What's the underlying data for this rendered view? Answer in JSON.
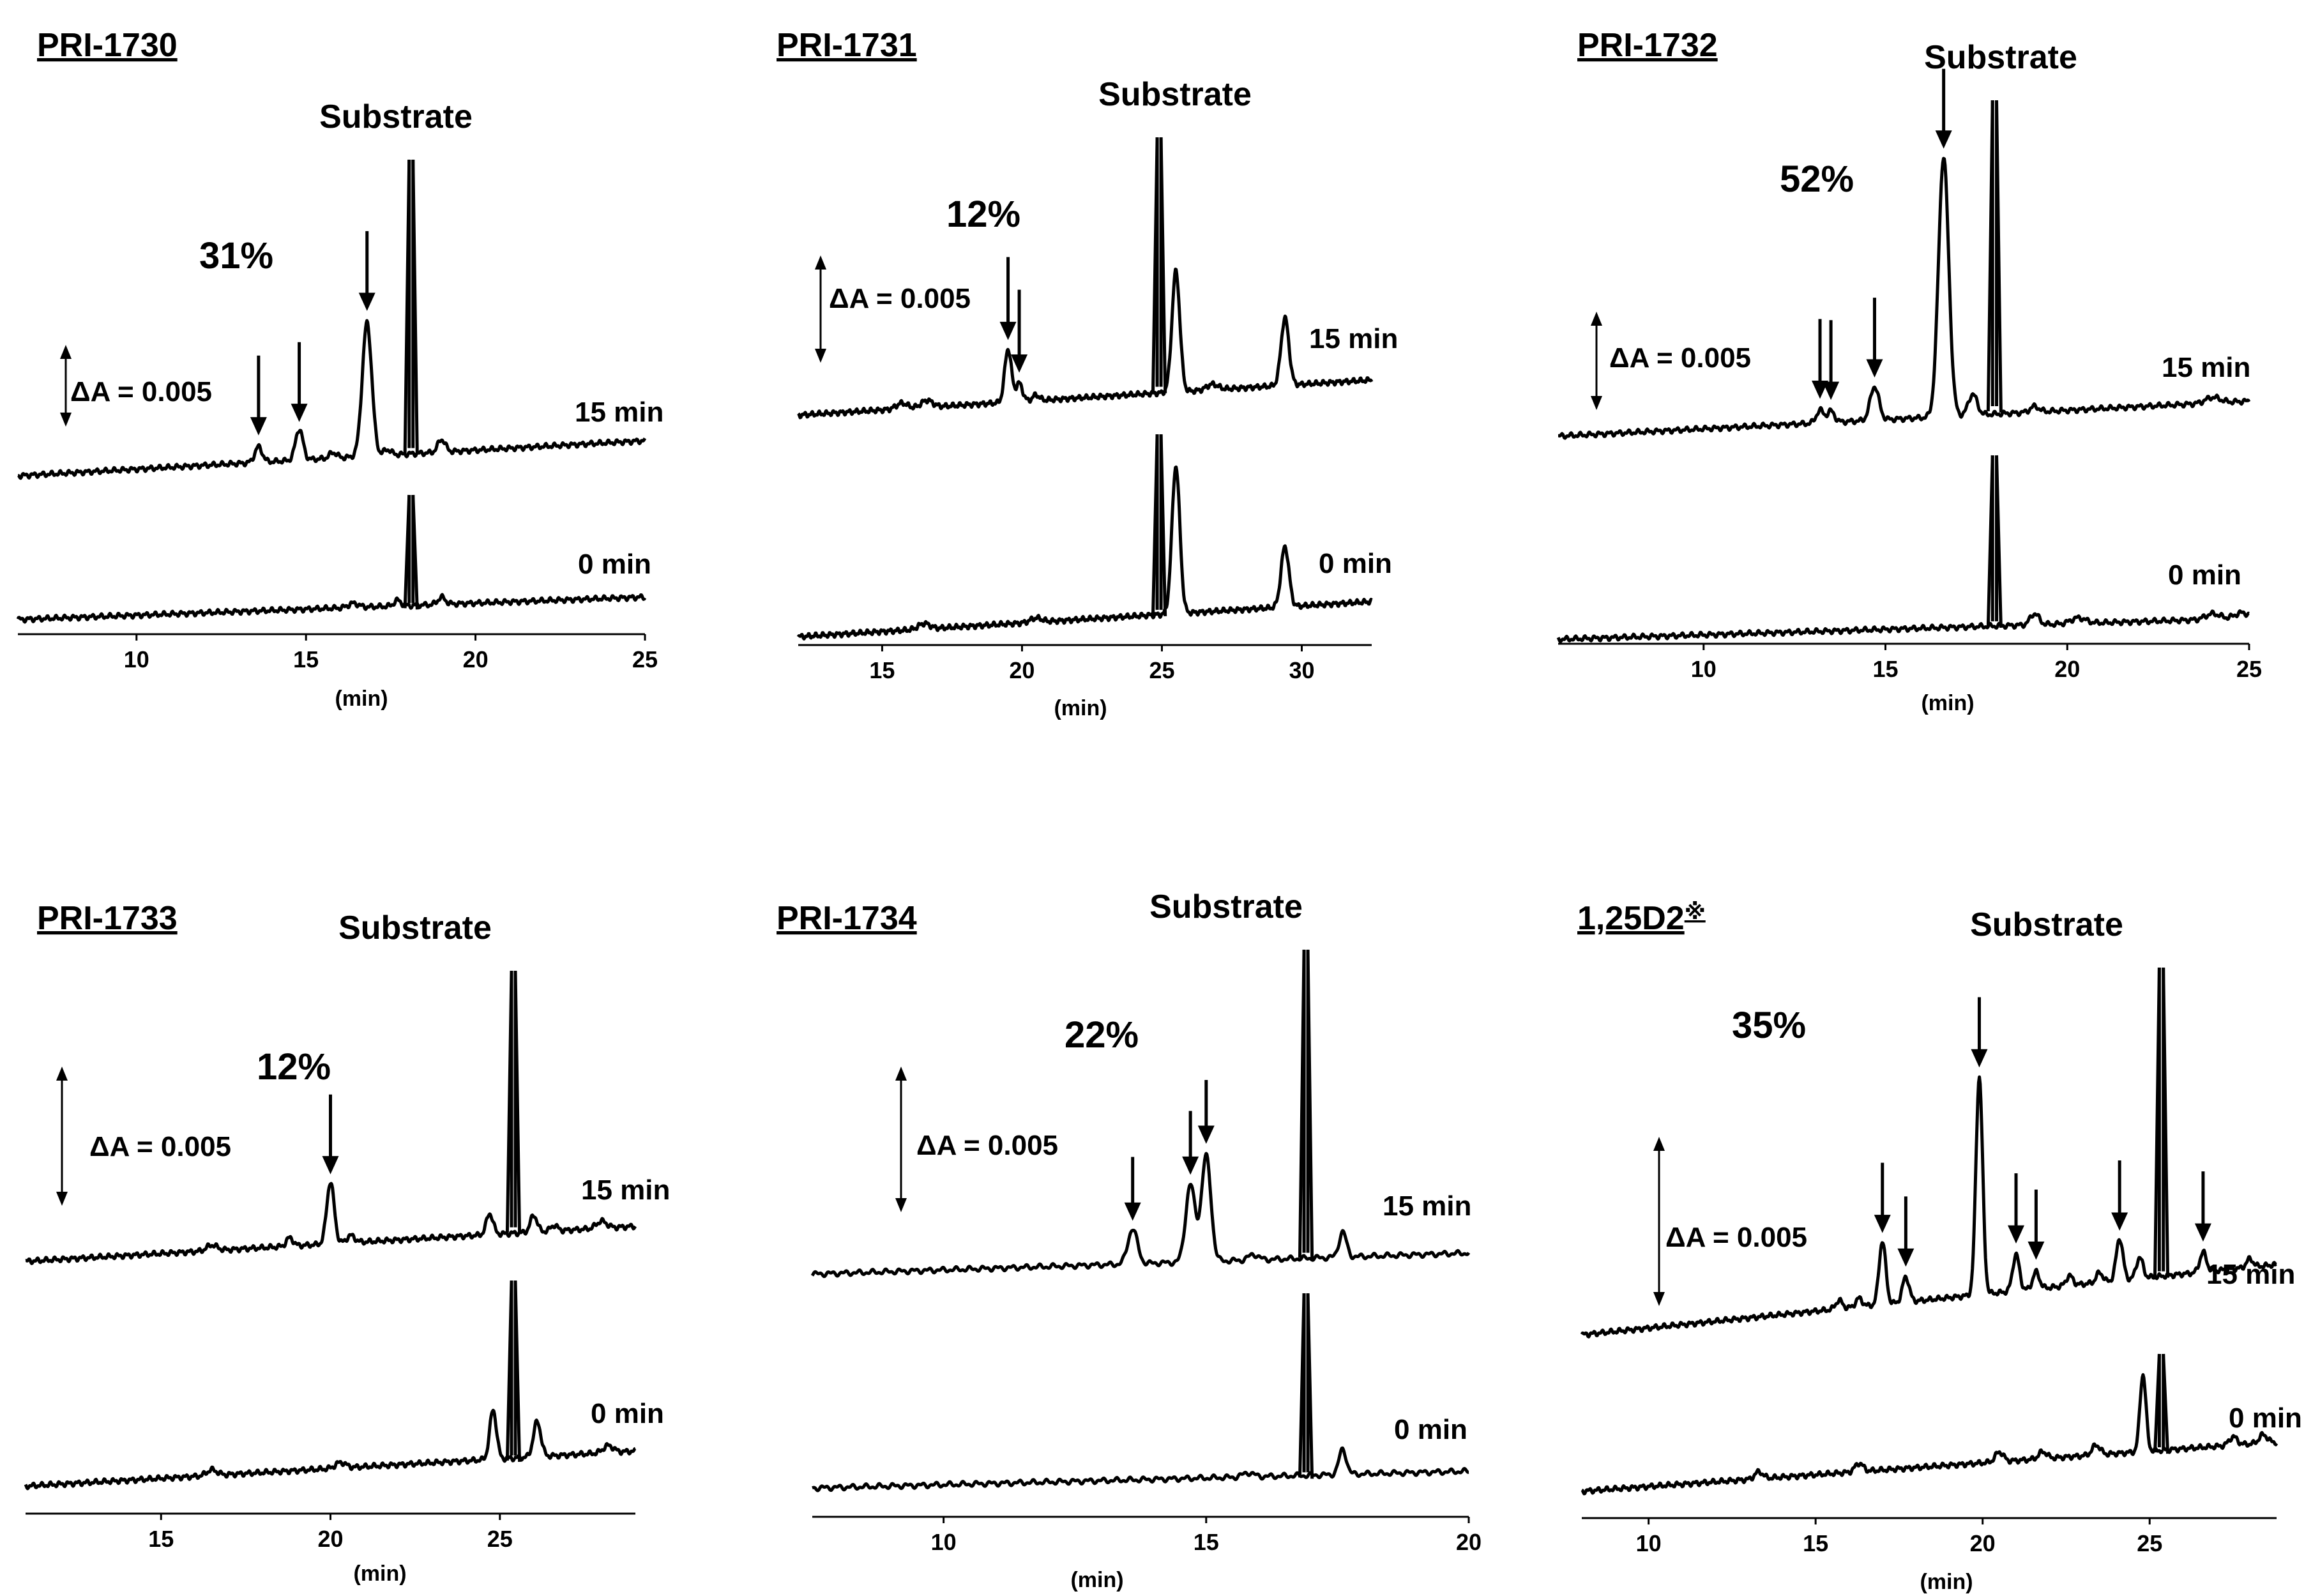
{
  "chart_data": [
    {
      "type": "line",
      "title": "PRI-1730",
      "substrate_label": "Substrate",
      "conversion_label": "31%",
      "scale_label": "ΔA = 0.005",
      "xunit": "(min)",
      "xlim": [
        6.5,
        25
      ],
      "ticks": [
        10,
        15,
        20,
        25
      ],
      "series": [
        {
          "label": "15 min",
          "baseline": [
            0.0,
            0.0025
          ],
          "substrate": {
            "rt": 18.1,
            "width": 0.11,
            "height": 0.3
          },
          "peaks": [
            {
              "rt": 13.6,
              "h": 0.0011,
              "w": 0.11
            },
            {
              "rt": 14.8,
              "h": 0.0022,
              "w": 0.11
            },
            {
              "rt": 15.8,
              "h": 0.0004,
              "w": 0.11
            },
            {
              "rt": 16.8,
              "h": 0.0095,
              "w": 0.14
            },
            {
              "rt": 17.4,
              "h": 0.0004,
              "w": 0.11
            },
            {
              "rt": 19.0,
              "h": 0.0009,
              "w": 0.11
            }
          ],
          "arrows": [
            13.6,
            14.8,
            16.8
          ]
        },
        {
          "label": "0 min",
          "baseline": [
            0.0,
            0.0016
          ],
          "substrate": {
            "rt": 18.1,
            "width": 0.11,
            "height": 0.3
          },
          "peaks": [
            {
              "rt": 16.4,
              "h": 0.0003,
              "w": 0.15
            },
            {
              "rt": 17.7,
              "h": 0.0004,
              "w": 0.1
            },
            {
              "rt": 19.0,
              "h": 0.0005,
              "w": 0.11
            }
          ],
          "arrows": []
        }
      ]
    },
    {
      "type": "line",
      "title": "PRI-1731",
      "substrate_label": "Substrate",
      "conversion_label": "12%",
      "scale_label": "ΔA = 0.005",
      "xunit": "(min)",
      "xlim": [
        12,
        32.5
      ],
      "ticks": [
        15,
        20,
        25,
        30
      ],
      "series": [
        {
          "label": "15 min",
          "baseline": [
            0.0,
            0.0025
          ],
          "substrate": {
            "rt": 24.9,
            "width": 0.12,
            "height": 0.3
          },
          "peaks": [
            {
              "rt": 15.7,
              "h": 0.0004,
              "w": 0.2
            },
            {
              "rt": 16.6,
              "h": 0.0005,
              "w": 0.2
            },
            {
              "rt": 19.5,
              "h": 0.0038,
              "w": 0.12
            },
            {
              "rt": 19.9,
              "h": 0.0013,
              "w": 0.12
            },
            {
              "rt": 20.5,
              "h": 0.0004,
              "w": 0.12
            },
            {
              "rt": 25.5,
              "h": 0.0086,
              "w": 0.14
            },
            {
              "rt": 26.8,
              "h": 0.0004,
              "w": 0.2
            },
            {
              "rt": 29.4,
              "h": 0.0048,
              "w": 0.14
            }
          ],
          "arrows": [
            19.5,
            19.9
          ]
        },
        {
          "label": "0 min",
          "baseline": [
            0.0,
            0.0025
          ],
          "substrate": {
            "rt": 24.9,
            "width": 0.12,
            "height": 0.3
          },
          "peaks": [
            {
              "rt": 16.5,
              "h": 0.0004,
              "w": 0.2
            },
            {
              "rt": 20.5,
              "h": 0.0003,
              "w": 0.2
            },
            {
              "rt": 25.5,
              "h": 0.0105,
              "w": 0.14
            },
            {
              "rt": 29.4,
              "h": 0.0043,
              "w": 0.14
            }
          ],
          "arrows": []
        }
      ]
    },
    {
      "type": "line",
      "title": "PRI-1732",
      "substrate_label": "Substrate",
      "conversion_label": "52%",
      "scale_label": "ΔA = 0.005",
      "xunit": "(min)",
      "xlim": [
        6,
        25
      ],
      "ticks": [
        10,
        15,
        20,
        25
      ],
      "series": [
        {
          "label": "15 min",
          "baseline": [
            0.0,
            0.0025
          ],
          "substrate": {
            "rt": 18.0,
            "width": 0.11,
            "height": 0.3
          },
          "peaks": [
            {
              "rt": 13.2,
              "h": 0.0009,
              "w": 0.1
            },
            {
              "rt": 13.5,
              "h": 0.0008,
              "w": 0.1
            },
            {
              "rt": 14.7,
              "h": 0.0024,
              "w": 0.12
            },
            {
              "rt": 16.6,
              "h": 0.0185,
              "w": 0.14
            },
            {
              "rt": 17.4,
              "h": 0.0015,
              "w": 0.12
            },
            {
              "rt": 19.1,
              "h": 0.0004,
              "w": 0.12
            },
            {
              "rt": 24.0,
              "h": 0.0004,
              "w": 0.2
            }
          ],
          "arrows": [
            13.2,
            13.5,
            14.7,
            16.6
          ]
        },
        {
          "label": "0 min",
          "baseline": [
            0.0,
            0.0015
          ],
          "substrate": {
            "rt": 18.0,
            "width": 0.11,
            "height": 0.3
          },
          "peaks": [
            {
              "rt": 19.1,
              "h": 0.0008,
              "w": 0.12
            },
            {
              "rt": 20.3,
              "h": 0.0004,
              "w": 0.2
            },
            {
              "rt": 24.0,
              "h": 0.0004,
              "w": 0.2
            },
            {
              "rt": 24.8,
              "h": 0.0004,
              "w": 0.2
            }
          ],
          "arrows": []
        }
      ]
    },
    {
      "type": "line",
      "title": "PRI-1733",
      "substrate_label": "Substrate",
      "conversion_label": "12%",
      "scale_label": "ΔA = 0.005",
      "xunit": "(min)",
      "xlim": [
        11,
        29
      ],
      "ticks": [
        15,
        20,
        25
      ],
      "series": [
        {
          "label": "15 min",
          "baseline": [
            0.0,
            0.0025
          ],
          "substrate": {
            "rt": 25.4,
            "width": 0.11,
            "height": 0.3
          },
          "peaks": [
            {
              "rt": 16.5,
              "h": 0.0004,
              "w": 0.15
            },
            {
              "rt": 18.8,
              "h": 0.0006,
              "w": 0.1
            },
            {
              "rt": 20.0,
              "h": 0.0044,
              "w": 0.11
            },
            {
              "rt": 20.6,
              "h": 0.0005,
              "w": 0.12
            },
            {
              "rt": 24.7,
              "h": 0.0015,
              "w": 0.1
            },
            {
              "rt": 26.0,
              "h": 0.0012,
              "w": 0.1
            },
            {
              "rt": 26.6,
              "h": 0.0004,
              "w": 0.1
            },
            {
              "rt": 28.0,
              "h": 0.0005,
              "w": 0.15
            }
          ],
          "arrows": [
            20.0
          ]
        },
        {
          "label": "0 min",
          "baseline": [
            0.0,
            0.0025
          ],
          "substrate": {
            "rt": 25.4,
            "width": 0.11,
            "height": 0.3
          },
          "peaks": [
            {
              "rt": 16.5,
              "h": 0.0004,
              "w": 0.15
            },
            {
              "rt": 20.3,
              "h": 0.0004,
              "w": 0.15
            },
            {
              "rt": 24.8,
              "h": 0.0035,
              "w": 0.1
            },
            {
              "rt": 26.1,
              "h": 0.0025,
              "w": 0.11
            },
            {
              "rt": 28.2,
              "h": 0.0005,
              "w": 0.15
            }
          ],
          "arrows": []
        }
      ]
    },
    {
      "type": "line",
      "title": "PRI-1734",
      "substrate_label": "Substrate",
      "conversion_label": "22%",
      "scale_label": "ΔA = 0.005",
      "xunit": "(min)",
      "xlim": [
        7.5,
        20
      ],
      "ticks": [
        10,
        15,
        20
      ],
      "series": [
        {
          "label": "15 min",
          "baseline": [
            0.0,
            0.0015
          ],
          "substrate": {
            "rt": 16.9,
            "width": 0.07,
            "height": 0.3
          },
          "peaks": [
            {
              "rt": 13.6,
              "h": 0.0025,
              "w": 0.09
            },
            {
              "rt": 14.7,
              "h": 0.0055,
              "w": 0.09
            },
            {
              "rt": 15.0,
              "h": 0.0075,
              "w": 0.09
            },
            {
              "rt": 15.9,
              "h": 0.0004,
              "w": 0.09
            },
            {
              "rt": 17.6,
              "h": 0.0018,
              "w": 0.07
            }
          ],
          "arrows": [
            13.6,
            14.7,
            15.0
          ]
        },
        {
          "label": "0 min",
          "baseline": [
            0.0,
            0.0012
          ],
          "substrate": {
            "rt": 16.9,
            "width": 0.07,
            "height": 0.3
          },
          "peaks": [
            {
              "rt": 15.8,
              "h": 0.0003,
              "w": 0.1
            },
            {
              "rt": 17.6,
              "h": 0.0018,
              "w": 0.07
            }
          ],
          "arrows": []
        }
      ]
    },
    {
      "type": "line",
      "title": "1,25D2",
      "title_mark": "※",
      "substrate_label": "Substrate",
      "conversion_label": "35%",
      "scale_label": "ΔA = 0.005",
      "xunit": "(min)",
      "xlim": [
        8,
        28.8
      ],
      "ticks": [
        10,
        15,
        20,
        25
      ],
      "series": [
        {
          "label": "15 min",
          "baseline": [
            0.0,
            0.005
          ],
          "substrate": {
            "rt": 25.35,
            "width": 0.12,
            "height": 0.3
          },
          "peaks": [
            {
              "rt": 15.7,
              "h": 0.0006,
              "w": 0.1
            },
            {
              "rt": 16.3,
              "h": 0.0006,
              "w": 0.1
            },
            {
              "rt": 17.0,
              "h": 0.0045,
              "w": 0.1
            },
            {
              "rt": 17.7,
              "h": 0.0018,
              "w": 0.1
            },
            {
              "rt": 19.9,
              "h": 0.0155,
              "w": 0.1
            },
            {
              "rt": 21.0,
              "h": 0.0026,
              "w": 0.1
            },
            {
              "rt": 21.6,
              "h": 0.0012,
              "w": 0.1
            },
            {
              "rt": 22.6,
              "h": 0.0007,
              "w": 0.1
            },
            {
              "rt": 23.5,
              "h": 0.0007,
              "w": 0.1
            },
            {
              "rt": 24.1,
              "h": 0.003,
              "w": 0.1
            },
            {
              "rt": 24.7,
              "h": 0.0015,
              "w": 0.1
            },
            {
              "rt": 26.6,
              "h": 0.0014,
              "w": 0.1
            },
            {
              "rt": 28.0,
              "h": 0.0006,
              "w": 0.1
            }
          ],
          "arrows": [
            17.0,
            17.7,
            19.9,
            21.0,
            21.6,
            24.1,
            26.6
          ]
        },
        {
          "label": "0 min",
          "baseline": [
            0.0,
            0.0035
          ],
          "substrate": {
            "rt": 25.35,
            "width": 0.12,
            "height": 0.3
          },
          "peaks": [
            {
              "rt": 13.3,
              "h": 0.0005,
              "w": 0.12
            },
            {
              "rt": 16.3,
              "h": 0.0006,
              "w": 0.12
            },
            {
              "rt": 20.5,
              "h": 0.0007,
              "w": 0.12
            },
            {
              "rt": 21.8,
              "h": 0.0005,
              "w": 0.12
            },
            {
              "rt": 23.4,
              "h": 0.0007,
              "w": 0.12
            },
            {
              "rt": 24.8,
              "h": 0.0055,
              "w": 0.09
            },
            {
              "rt": 27.5,
              "h": 0.0006,
              "w": 0.12
            },
            {
              "rt": 28.4,
              "h": 0.0006,
              "w": 0.12
            }
          ],
          "arrows": []
        }
      ]
    }
  ]
}
